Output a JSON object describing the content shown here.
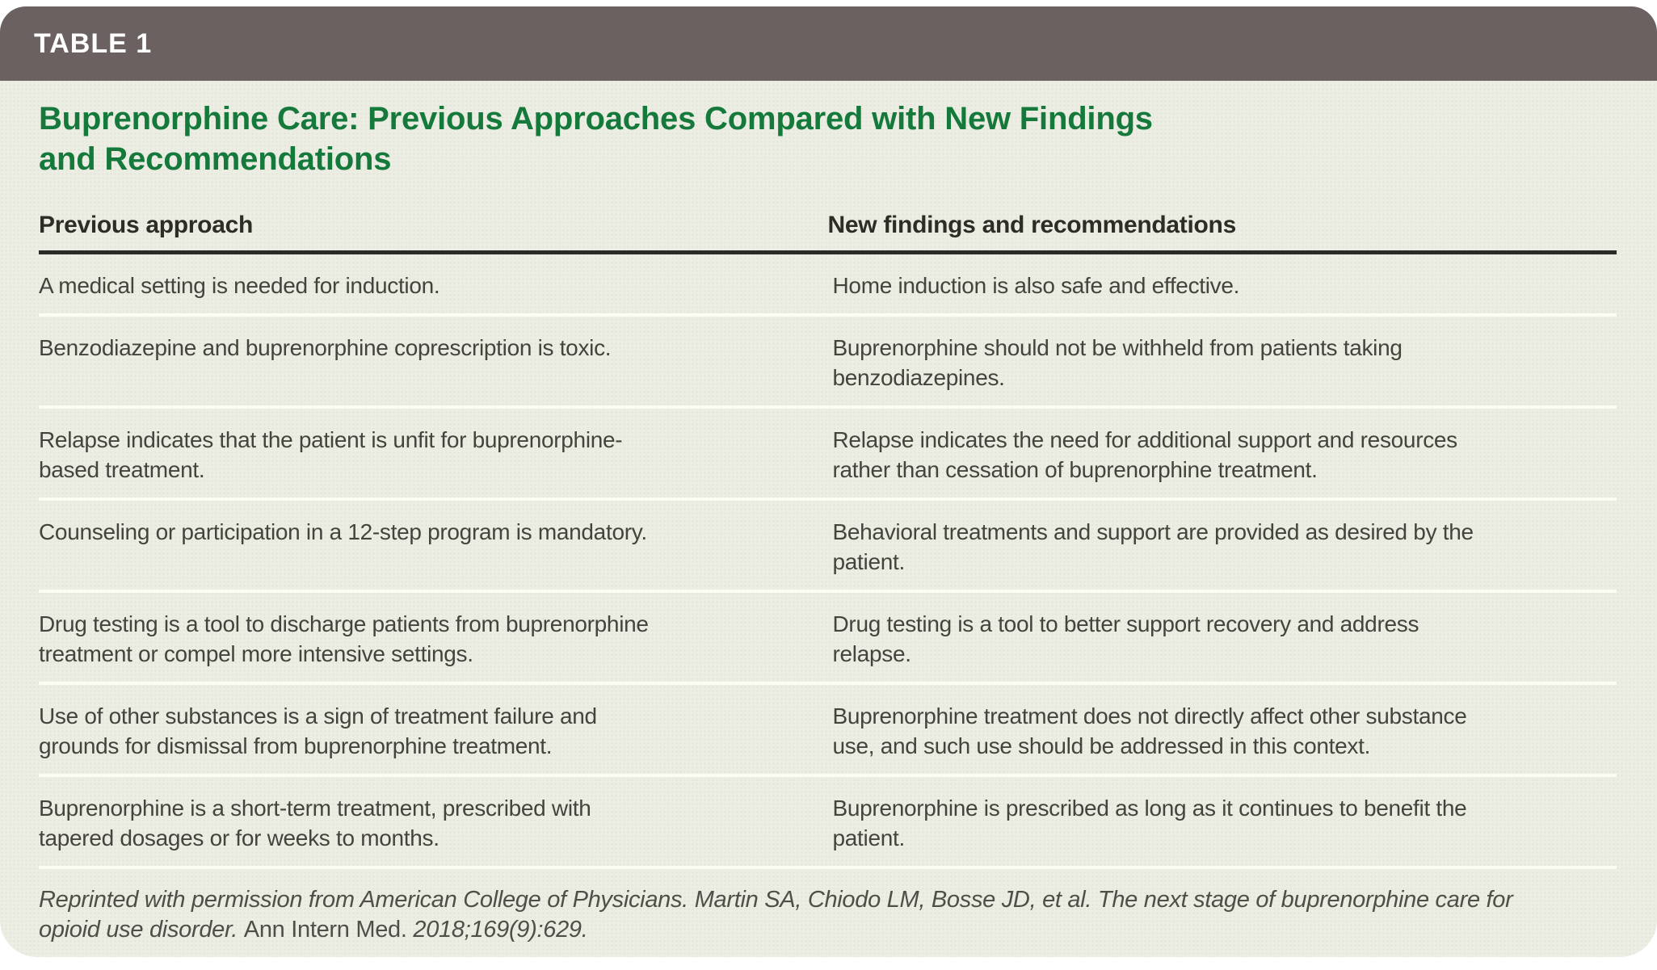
{
  "header": {
    "label": "TABLE 1",
    "title": "Buprenorphine Care: Previous Approaches Compared with New Findings\nand Recommendations"
  },
  "table": {
    "columns": [
      "Previous approach",
      "New findings and recommendations"
    ],
    "rows": [
      {
        "previous": "A medical setting is needed for induction.",
        "new": "Home induction is also safe and effective."
      },
      {
        "previous": "Benzodiazepine and buprenorphine coprescription is toxic.",
        "new": "Buprenorphine should not be withheld from patients taking\nbenzodiazepines."
      },
      {
        "previous": "Relapse indicates that the patient is unfit for buprenorphine-\nbased treatment.",
        "new": "Relapse indicates the need for additional support and resources\nrather than cessation of buprenorphine treatment."
      },
      {
        "previous": "Counseling or participation in a 12-step program is mandatory.",
        "new": "Behavioral treatments and support are provided as desired by the\npatient."
      },
      {
        "previous": "Drug testing is a tool to discharge patients from buprenorphine\ntreatment or compel more intensive settings.",
        "new": "Drug testing is a tool to better support recovery and address\nrelapse."
      },
      {
        "previous": "Use of other substances is a sign of treatment failure and\ngrounds for dismissal from buprenorphine treatment.",
        "new": "Buprenorphine treatment does not directly affect other substance\nuse, and such use should be addressed in this context."
      },
      {
        "previous": "Buprenorphine is a short-term treatment, prescribed with\ntapered dosages or for weeks to months.",
        "new": "Buprenorphine is prescribed as long as it continues to benefit the\npatient."
      }
    ]
  },
  "footer": {
    "citation_part1": "Reprinted with permission from American College of Physicians. Martin SA, Chiodo LM, Bosse JD, et al. The next stage of buprenorphine care for\nopioid use disorder. ",
    "citation_journal": "Ann Intern Med. ",
    "citation_part2": "2018;169(9):629."
  },
  "colors": {
    "header_bar": "#6a6160",
    "title_green": "#15793c",
    "card_background": "#ecede3",
    "header_rule": "#2b2a27",
    "row_divider": "#fbfcf3",
    "body_text": "#45433e"
  }
}
